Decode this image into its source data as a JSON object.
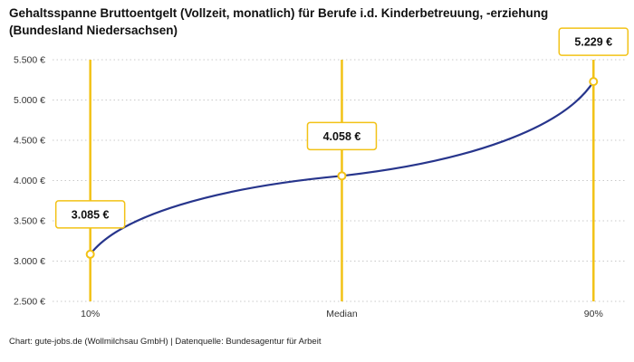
{
  "title": "Gehaltsspanne Bruttoentgelt (Vollzeit, monatlich) für Berufe i.d. Kinderbetreuung, -erziehung (Bundesland Niedersachsen)",
  "footer": "Chart: gute-jobs.de (Wollmilchsau GmbH) | Datenquelle: Bundesagentur für Arbeit",
  "colors": {
    "line": "#27358c",
    "accent": "#f2c216",
    "grid": "#c9c9c9",
    "text": "#111111",
    "axis_text": "#333333",
    "background": "#ffffff"
  },
  "chart_data": {
    "type": "line",
    "title": "Gehaltsspanne Bruttoentgelt (Vollzeit, monatlich) für Berufe i.d. Kinderbetreuung, -erziehung (Bundesland Niedersachsen)",
    "x_percentiles": [
      10,
      50,
      90
    ],
    "categories": [
      "10%",
      "Median",
      "90%"
    ],
    "values": [
      3085,
      4058,
      5229
    ],
    "value_labels": [
      "3.085 €",
      "4.058 €",
      "5.229 €"
    ],
    "ylim": [
      2500,
      5500
    ],
    "ytick_step": 500,
    "ytick_labels": [
      "2.500 €",
      "3.000 €",
      "3.500 €",
      "4.000 €",
      "4.500 €",
      "5.000 €",
      "5.500 €"
    ],
    "xlabel": "",
    "ylabel": "",
    "grid": "horizontal-dotted",
    "legend": "none",
    "annotations": "each percentile has a vertical yellow marker line, hollow circle data point and a yellow-bordered white value box above it"
  }
}
